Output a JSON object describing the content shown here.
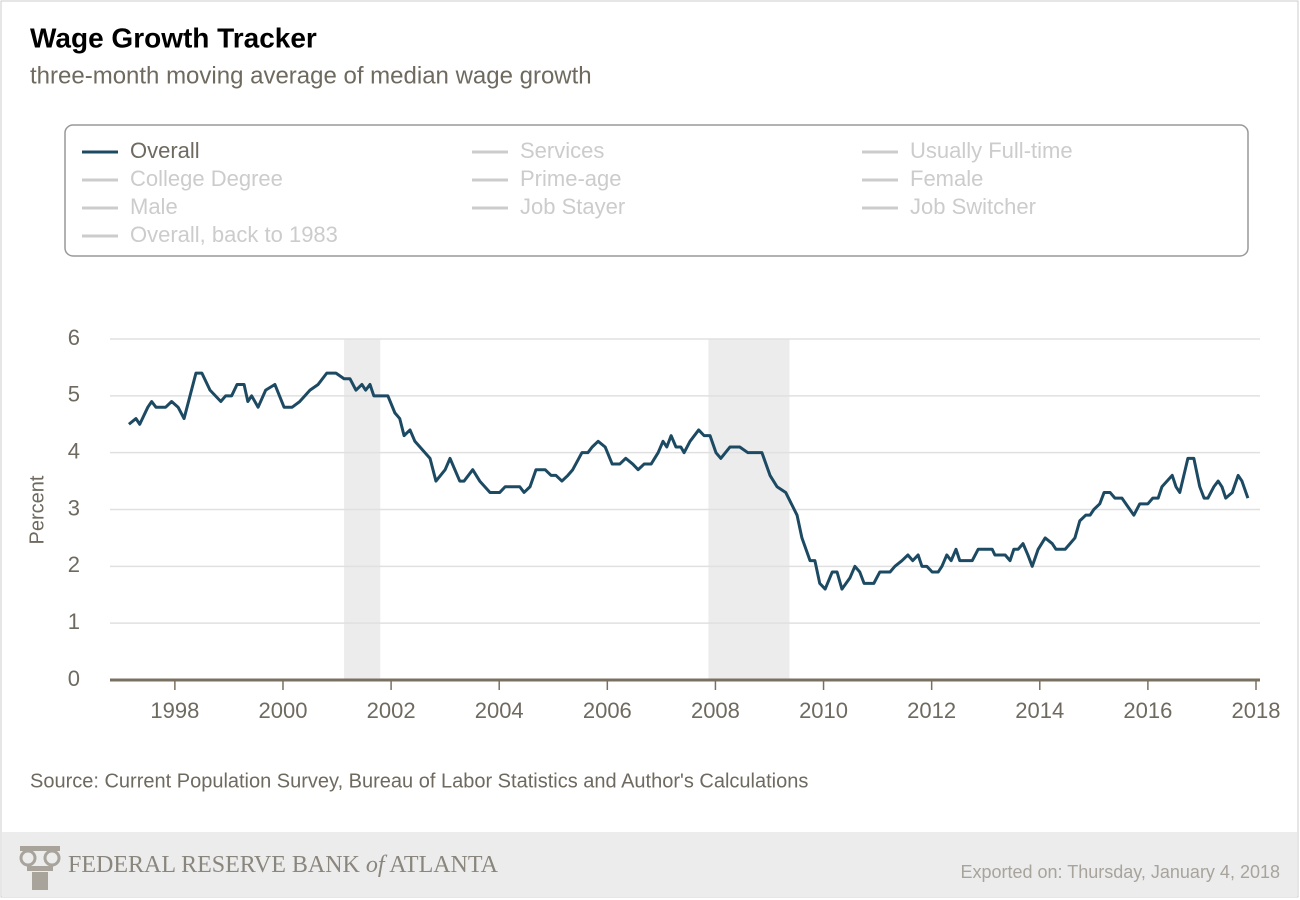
{
  "chart_data": {
    "type": "line",
    "title": "Wage Growth Tracker",
    "subtitle": "three-month moving average of median wage growth",
    "y_label": "Percent",
    "source": "Source: Current Population Survey, Bureau of Labor Statistics and Author's Calculations",
    "xlim": [
      1996.8,
      2018
    ],
    "xticks": [
      1998,
      2000,
      2002,
      2004,
      2006,
      2008,
      2010,
      2012,
      2014,
      2016,
      2018
    ],
    "ylim": [
      0,
      6
    ],
    "yticks": [
      0,
      1,
      2,
      3,
      4,
      5,
      6
    ],
    "grid": true,
    "shaded_ranges": [
      [
        2001.13,
        2001.8
      ],
      [
        2007.87,
        2009.37
      ]
    ],
    "shade_color": "#ececec",
    "inactive_color": "#cccccc",
    "legend_inactive": [
      "Services",
      "Usually Full-time",
      "College Degree",
      "Prime-age",
      "Female",
      "Male",
      "Job Stayer",
      "Job Switcher",
      "Overall, back to 1983"
    ],
    "x": [
      1997.15,
      1997.28,
      1997.35,
      1997.5,
      1997.57,
      1997.65,
      1997.83,
      1997.94,
      1998.06,
      1998.17,
      1998.28,
      1998.39,
      1998.5,
      1998.65,
      1998.85,
      1998.94,
      1999.05,
      1999.15,
      1999.28,
      1999.35,
      1999.42,
      1999.54,
      1999.68,
      1999.85,
      2000.02,
      2000.17,
      2000.31,
      2000.5,
      2000.65,
      2000.81,
      2000.98,
      2001.13,
      2001.24,
      2001.35,
      2001.46,
      2001.53,
      2001.61,
      2001.68,
      2001.94,
      2002.07,
      2002.16,
      2002.24,
      2002.35,
      2002.44,
      2002.72,
      2002.83,
      2003.0,
      2003.09,
      2003.27,
      2003.35,
      2003.51,
      2003.64,
      2003.83,
      2004.01,
      2004.11,
      2004.38,
      2004.46,
      2004.57,
      2004.68,
      2004.85,
      2004.96,
      2005.05,
      2005.16,
      2005.27,
      2005.36,
      2005.53,
      2005.64,
      2005.72,
      2005.83,
      2005.96,
      2006.09,
      2006.23,
      2006.34,
      2006.47,
      2006.57,
      2006.68,
      2006.81,
      2006.94,
      2007.03,
      2007.1,
      2007.18,
      2007.27,
      2007.36,
      2007.42,
      2007.53,
      2007.69,
      2007.79,
      2007.9,
      2008.01,
      2008.1,
      2008.27,
      2008.45,
      2008.6,
      2008.86,
      2009.01,
      2009.14,
      2009.3,
      2009.51,
      2009.6,
      2009.75,
      2009.84,
      2009.93,
      2010.03,
      2010.16,
      2010.25,
      2010.34,
      2010.49,
      2010.58,
      2010.67,
      2010.75,
      2010.93,
      2011.04,
      2011.23,
      2011.32,
      2011.45,
      2011.56,
      2011.65,
      2011.75,
      2011.82,
      2011.91,
      2012.01,
      2012.12,
      2012.19,
      2012.28,
      2012.36,
      2012.45,
      2012.52,
      2012.75,
      2012.86,
      2013.12,
      2013.17,
      2013.36,
      2013.45,
      2013.52,
      2013.6,
      2013.69,
      2013.78,
      2013.86,
      2013.97,
      2014.1,
      2014.23,
      2014.3,
      2014.47,
      2014.56,
      2014.65,
      2014.74,
      2014.85,
      2014.93,
      2015.0,
      2015.11,
      2015.19,
      2015.3,
      2015.39,
      2015.52,
      2015.74,
      2015.85,
      2016.0,
      2016.09,
      2016.19,
      2016.26,
      2016.45,
      2016.52,
      2016.59,
      2016.74,
      2016.85,
      2016.96,
      2017.04,
      2017.11,
      2017.22,
      2017.3,
      2017.37,
      2017.44,
      2017.56,
      2017.67,
      2017.74,
      2017.85
    ],
    "series": [
      {
        "name": "Overall",
        "color": "#1d4a63",
        "values": [
          4.5,
          4.6,
          4.5,
          4.8,
          4.9,
          4.8,
          4.8,
          4.9,
          4.8,
          4.6,
          5.0,
          5.4,
          5.4,
          5.1,
          4.9,
          5.0,
          5.0,
          5.2,
          5.2,
          4.9,
          5.0,
          4.8,
          5.1,
          5.2,
          4.8,
          4.8,
          4.9,
          5.1,
          5.2,
          5.4,
          5.4,
          5.3,
          5.3,
          5.1,
          5.2,
          5.1,
          5.2,
          5.0,
          5.0,
          4.7,
          4.6,
          4.3,
          4.4,
          4.2,
          3.9,
          3.5,
          3.7,
          3.9,
          3.5,
          3.5,
          3.7,
          3.5,
          3.3,
          3.3,
          3.4,
          3.4,
          3.3,
          3.4,
          3.7,
          3.7,
          3.6,
          3.6,
          3.5,
          3.6,
          3.7,
          4.0,
          4.0,
          4.1,
          4.2,
          4.1,
          3.8,
          3.8,
          3.9,
          3.8,
          3.7,
          3.8,
          3.8,
          4.0,
          4.2,
          4.1,
          4.3,
          4.1,
          4.1,
          4.0,
          4.2,
          4.4,
          4.3,
          4.3,
          4.0,
          3.9,
          4.1,
          4.1,
          4.0,
          4.0,
          3.6,
          3.4,
          3.3,
          2.9,
          2.5,
          2.1,
          2.1,
          1.7,
          1.6,
          1.9,
          1.9,
          1.6,
          1.8,
          2.0,
          1.9,
          1.7,
          1.7,
          1.9,
          1.9,
          2.0,
          2.1,
          2.2,
          2.1,
          2.2,
          2.0,
          2.0,
          1.9,
          1.9,
          2.0,
          2.2,
          2.1,
          2.3,
          2.1,
          2.1,
          2.3,
          2.3,
          2.2,
          2.2,
          2.1,
          2.3,
          2.3,
          2.4,
          2.2,
          2.0,
          2.3,
          2.5,
          2.4,
          2.3,
          2.3,
          2.4,
          2.5,
          2.8,
          2.9,
          2.9,
          3.0,
          3.1,
          3.3,
          3.3,
          3.2,
          3.2,
          2.9,
          3.1,
          3.1,
          3.2,
          3.2,
          3.4,
          3.6,
          3.4,
          3.3,
          3.9,
          3.9,
          3.4,
          3.2,
          3.2,
          3.4,
          3.5,
          3.4,
          3.2,
          3.3,
          3.6,
          3.5,
          3.2
        ]
      }
    ]
  },
  "footer": {
    "logo_parts": [
      "FEDERAL RESERVE BANK",
      "of",
      "ATLANTA"
    ],
    "exported": "Exported on: Thursday, January 4, 2018"
  }
}
